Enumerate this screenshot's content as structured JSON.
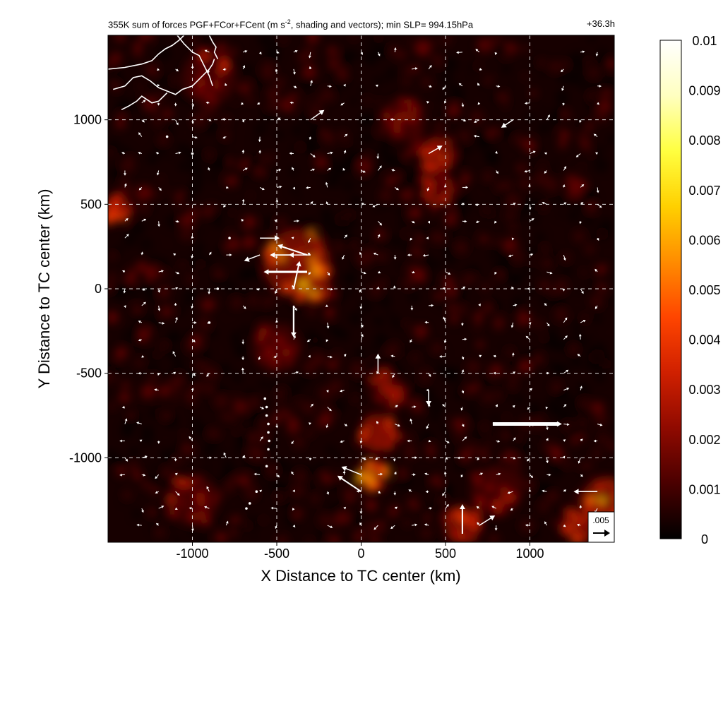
{
  "chart_data": {
    "type": "heatmap",
    "title_parts": {
      "pre": "355K sum of forces PGF+FCor+FCent (m s",
      "sup": "-2",
      "post": ", shading and vectors); min SLP= 994.15hPa"
    },
    "time_label": "+36.3h",
    "xlabel": "X Distance to TC center (km)",
    "ylabel": "Y Distance to TC center (km)",
    "xlim": [
      -1500,
      1500
    ],
    "ylim": [
      -1500,
      1500
    ],
    "x_ticks": [
      -1000,
      -500,
      0,
      500,
      1000
    ],
    "y_ticks": [
      -1000,
      -500,
      0,
      500,
      1000
    ],
    "x_tick_labels": [
      "-1000",
      "-500",
      "0",
      "500",
      "1000"
    ],
    "y_tick_labels": [
      "-1000",
      "-500",
      "0",
      "500",
      "1000"
    ],
    "grid": true,
    "colorbar": {
      "min": 0,
      "max": 0.01,
      "ticks": [
        0,
        0.001,
        0.002,
        0.003,
        0.004,
        0.005,
        0.006,
        0.007,
        0.008,
        0.009,
        0.01
      ],
      "tick_labels": [
        "0",
        "0.001",
        "0.002",
        "0.003",
        "0.004",
        "0.005",
        "0.006",
        "0.007",
        "0.008",
        "0.009",
        "0.01"
      ],
      "colors": [
        "#000000",
        "#4a0000",
        "#900a00",
        "#d02000",
        "#ff4500",
        "#ff8c00",
        "#ffd000",
        "#ffff40",
        "#ffffc0",
        "#ffffff"
      ]
    },
    "reference_vector": {
      "label": ".005",
      "value": 0.005
    },
    "hotspots": [
      {
        "x": -380,
        "y": 150,
        "r": 200,
        "value": 0.0055
      },
      {
        "x": -300,
        "y": 50,
        "r": 120,
        "value": 0.006
      },
      {
        "x": 60,
        "y": -1100,
        "r": 90,
        "value": 0.006
      },
      {
        "x": 100,
        "y": -850,
        "r": 110,
        "value": 0.004
      },
      {
        "x": 150,
        "y": -600,
        "r": 100,
        "value": 0.003
      },
      {
        "x": 450,
        "y": 800,
        "r": 100,
        "value": 0.004
      },
      {
        "x": 450,
        "y": 600,
        "r": 90,
        "value": 0.003
      },
      {
        "x": 1450,
        "y": -1250,
        "r": 140,
        "value": 0.006
      },
      {
        "x": 1300,
        "y": -1400,
        "r": 110,
        "value": 0.004
      },
      {
        "x": 600,
        "y": -1400,
        "r": 110,
        "value": 0.004
      },
      {
        "x": -1450,
        "y": 480,
        "r": 80,
        "value": 0.005
      },
      {
        "x": -900,
        "y": 1250,
        "r": 160,
        "value": 0.003
      },
      {
        "x": -1000,
        "y": -1250,
        "r": 150,
        "value": 0.003
      },
      {
        "x": 800,
        "y": -1200,
        "r": 150,
        "value": 0.003
      },
      {
        "x": -500,
        "y": -350,
        "r": 140,
        "value": 0.0025
      },
      {
        "x": 250,
        "y": 1000,
        "r": 130,
        "value": 0.0025
      }
    ],
    "vectors": [
      {
        "x": 780,
        "y": -800,
        "u": 0.0035,
        "v": 0.0
      },
      {
        "x": -320,
        "y": 100,
        "u": -0.0022,
        "v": 0.0
      },
      {
        "x": -320,
        "y": 200,
        "u": -0.0015,
        "v": 0.0005
      },
      {
        "x": -400,
        "y": 0,
        "u": 0.0003,
        "v": 0.0014
      },
      {
        "x": -400,
        "y": -100,
        "u": 0.0,
        "v": -0.0016
      },
      {
        "x": -400,
        "y": 200,
        "u": -0.0012,
        "v": 0.0
      },
      {
        "x": -300,
        "y": 200,
        "u": -0.0011,
        "v": 0.0
      },
      {
        "x": -600,
        "y": 300,
        "u": 0.001,
        "v": 0.0
      },
      {
        "x": -600,
        "y": 200,
        "u": -0.0008,
        "v": -0.0003
      },
      {
        "x": 0,
        "y": -1200,
        "u": -0.0012,
        "v": 0.0008
      },
      {
        "x": 0,
        "y": -1100,
        "u": -0.001,
        "v": 0.0004
      },
      {
        "x": 100,
        "y": -500,
        "u": 0.0,
        "v": 0.001
      },
      {
        "x": 400,
        "y": -600,
        "u": 0.0,
        "v": -0.0008
      },
      {
        "x": 600,
        "y": -1450,
        "u": 0.0,
        "v": 0.0015
      },
      {
        "x": 1400,
        "y": -1200,
        "u": -0.0012,
        "v": 0.0
      },
      {
        "x": 1400,
        "y": -1450,
        "u": 0.0,
        "v": 0.0008
      },
      {
        "x": -300,
        "y": 1000,
        "u": 0.0007,
        "v": 0.0005
      },
      {
        "x": 900,
        "y": 1000,
        "u": -0.0006,
        "v": -0.0004
      },
      {
        "x": 400,
        "y": 800,
        "u": 0.0007,
        "v": 0.0004
      },
      {
        "x": 700,
        "y": -1400,
        "u": 0.0008,
        "v": 0.0005
      }
    ],
    "coastline": [
      [
        [
          -1500,
          1300
        ],
        [
          -1400,
          1310
        ],
        [
          -1300,
          1330
        ],
        [
          -1240,
          1350
        ],
        [
          -1200,
          1390
        ],
        [
          -1160,
          1420
        ],
        [
          -1120,
          1440
        ],
        [
          -1080,
          1470
        ],
        [
          -1050,
          1500
        ]
      ],
      [
        [
          -1470,
          1180
        ],
        [
          -1400,
          1200
        ],
        [
          -1350,
          1250
        ],
        [
          -1300,
          1260
        ],
        [
          -1250,
          1230
        ],
        [
          -1200,
          1190
        ],
        [
          -1150,
          1170
        ],
        [
          -1100,
          1150
        ],
        [
          -1060,
          1180
        ],
        [
          -1000,
          1200
        ],
        [
          -960,
          1240
        ],
        [
          -930,
          1270
        ],
        [
          -900,
          1300
        ],
        [
          -880,
          1330
        ],
        [
          -870,
          1360
        ]
      ],
      [
        [
          -1420,
          1060
        ],
        [
          -1380,
          1080
        ],
        [
          -1330,
          1110
        ],
        [
          -1300,
          1140
        ],
        [
          -1270,
          1120
        ],
        [
          -1240,
          1100
        ],
        [
          -1200,
          1110
        ],
        [
          -1170,
          1140
        ],
        [
          -1150,
          1160
        ]
      ],
      [
        [
          -1090,
          1500
        ],
        [
          -1050,
          1450
        ],
        [
          -1000,
          1400
        ],
        [
          -960,
          1380
        ],
        [
          -940,
          1340
        ],
        [
          -920,
          1300
        ],
        [
          -900,
          1260
        ],
        [
          -880,
          1200
        ]
      ],
      [
        [
          -900,
          1500
        ],
        [
          -880,
          1460
        ],
        [
          -860,
          1430
        ],
        [
          -870,
          1400
        ],
        [
          -850,
          1360
        ]
      ]
    ],
    "island_dots": [
      [
        -570,
        -650
      ],
      [
        -560,
        -700
      ],
      [
        -560,
        -750
      ],
      [
        -550,
        -800
      ],
      [
        -550,
        -850
      ],
      [
        -545,
        -900
      ],
      [
        -550,
        -950
      ],
      [
        -560,
        -1050
      ],
      [
        -620,
        -1200
      ],
      [
        -660,
        -1270
      ],
      [
        -680,
        -1300
      ],
      [
        -780,
        300
      ],
      [
        -850,
        0
      ],
      [
        -900,
        -200
      ],
      [
        -1000,
        800
      ],
      [
        -1150,
        900
      ]
    ]
  }
}
